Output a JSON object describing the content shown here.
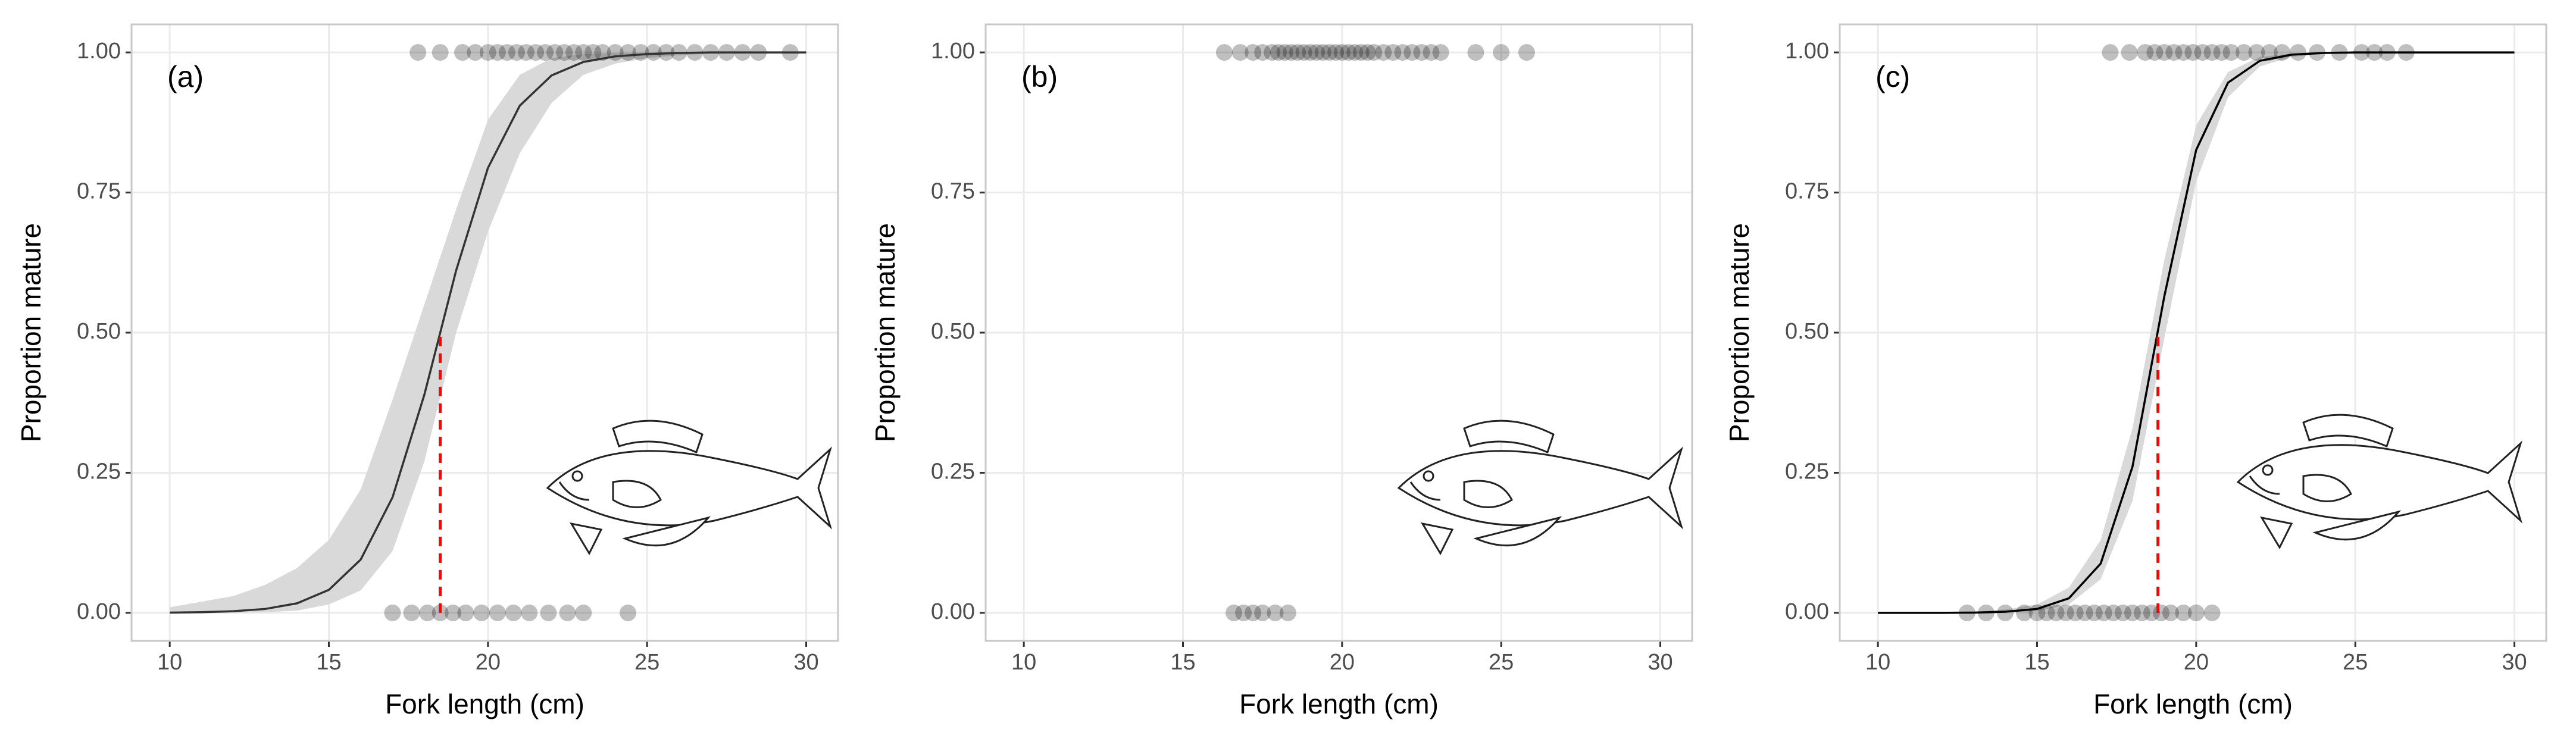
{
  "chart_data": [
    {
      "type": "logistic",
      "panel_label": "(a)",
      "xlabel": "Fork length (cm)",
      "ylabel": "Proportion mature",
      "xlim": [
        8.8,
        31
      ],
      "ylim": [
        -0.05,
        1.05
      ],
      "xticks": [
        10,
        15,
        20,
        25,
        30
      ],
      "yticks": [
        {
          "value": 0,
          "label": "0.00"
        },
        {
          "value": 0.25,
          "label": "0.25"
        },
        {
          "value": 0.5,
          "label": "0.50"
        },
        {
          "value": 0.75,
          "label": "0.75"
        },
        {
          "value": 1,
          "label": "1.00"
        }
      ],
      "grid": true,
      "points": {
        "color": "#000000",
        "x": [
          17.8,
          18.5,
          19.2,
          19.6,
          20.0,
          20.3,
          20.6,
          20.9,
          21.2,
          21.5,
          21.8,
          22.1,
          22.4,
          22.7,
          23.0,
          23.3,
          23.6,
          24.0,
          24.4,
          24.8,
          25.2,
          25.6,
          26.0,
          26.5,
          27.0,
          27.5,
          28.0,
          28.5,
          29.5,
          17.0,
          17.6,
          18.1,
          18.5,
          18.9,
          19.3,
          19.8,
          20.3,
          20.8,
          21.3,
          21.9,
          22.5,
          23.0,
          24.4
        ],
        "values": [
          1,
          1,
          1,
          1,
          1,
          1,
          1,
          1,
          1,
          1,
          1,
          1,
          1,
          1,
          1,
          1,
          1,
          1,
          1,
          1,
          1,
          1,
          1,
          1,
          1,
          1,
          1,
          1,
          1,
          0,
          0,
          0,
          0,
          0,
          0,
          0,
          0,
          0,
          0,
          0,
          0,
          0,
          0
        ]
      },
      "fit": {
        "color": "#333333",
        "band_color": "#d9d9d9",
        "x": [
          10,
          11,
          12,
          13,
          14,
          15,
          16,
          17,
          18,
          19,
          20,
          21,
          22,
          23,
          24,
          25,
          26,
          27,
          28,
          29,
          30
        ],
        "values": [
          0.0005,
          0.0012,
          0.0029,
          0.007,
          0.017,
          0.041,
          0.095,
          0.206,
          0.389,
          0.611,
          0.794,
          0.905,
          0.959,
          0.983,
          0.993,
          0.997,
          0.999,
          1,
          1,
          1,
          1
        ],
        "lower": [
          0,
          0,
          0,
          0.001,
          0.004,
          0.015,
          0.04,
          0.11,
          0.27,
          0.5,
          0.68,
          0.82,
          0.91,
          0.96,
          0.98,
          0.99,
          0.995,
          0.998,
          0.999,
          0.999,
          0.999
        ],
        "upper": [
          0.01,
          0.02,
          0.03,
          0.05,
          0.08,
          0.13,
          0.22,
          0.38,
          0.55,
          0.72,
          0.88,
          0.96,
          0.99,
          0.997,
          0.999,
          1,
          1,
          1,
          1,
          1,
          1
        ]
      },
      "l50": {
        "x": 18.5,
        "y": 0.5,
        "color": "#ff0000"
      }
    },
    {
      "type": "logistic",
      "panel_label": "(b)",
      "xlabel": "Fork length (cm)",
      "ylabel": "Proportion mature",
      "xlim": [
        8.8,
        31
      ],
      "ylim": [
        -0.05,
        1.05
      ],
      "xticks": [
        10,
        15,
        20,
        25,
        30
      ],
      "yticks": [
        {
          "value": 0,
          "label": "0.00"
        },
        {
          "value": 0.25,
          "label": "0.25"
        },
        {
          "value": 0.5,
          "label": "0.50"
        },
        {
          "value": 0.75,
          "label": "0.75"
        },
        {
          "value": 1,
          "label": "1.00"
        }
      ],
      "grid": true,
      "points": {
        "color": "#000000",
        "x": [
          16.3,
          16.8,
          17.2,
          17.5,
          17.8,
          18.0,
          18.2,
          18.4,
          18.6,
          18.8,
          19.0,
          19.2,
          19.4,
          19.6,
          19.8,
          20.0,
          20.2,
          20.4,
          20.6,
          20.8,
          21.0,
          21.3,
          21.6,
          21.9,
          22.2,
          22.5,
          22.8,
          23.1,
          24.2,
          25.0,
          25.8,
          16.6,
          16.9,
          17.2,
          17.5,
          17.9,
          18.3
        ],
        "values": [
          1,
          1,
          1,
          1,
          1,
          1,
          1,
          1,
          1,
          1,
          1,
          1,
          1,
          1,
          1,
          1,
          1,
          1,
          1,
          1,
          1,
          1,
          1,
          1,
          1,
          1,
          1,
          1,
          1,
          1,
          1,
          0,
          0,
          0,
          0,
          0,
          0
        ]
      }
    },
    {
      "type": "logistic",
      "panel_label": "(c)",
      "xlabel": "Fork length (cm)",
      "ylabel": "Proportion mature",
      "xlim": [
        8.8,
        31
      ],
      "ylim": [
        -0.05,
        1.05
      ],
      "xticks": [
        10,
        15,
        20,
        25,
        30
      ],
      "yticks": [
        {
          "value": 0,
          "label": "0.00"
        },
        {
          "value": 0.25,
          "label": "0.25"
        },
        {
          "value": 0.5,
          "label": "0.50"
        },
        {
          "value": 0.75,
          "label": "0.75"
        },
        {
          "value": 1,
          "label": "1.00"
        }
      ],
      "grid": true,
      "points": {
        "color": "#000000",
        "x": [
          17.3,
          17.9,
          18.4,
          18.7,
          19.0,
          19.3,
          19.6,
          19.9,
          20.2,
          20.5,
          20.8,
          21.1,
          21.5,
          21.9,
          22.3,
          22.7,
          23.2,
          23.8,
          24.5,
          25.2,
          25.6,
          26.0,
          26.6,
          12.8,
          13.4,
          14.0,
          14.6,
          15.0,
          15.3,
          15.6,
          15.9,
          16.2,
          16.5,
          16.8,
          17.1,
          17.4,
          17.7,
          18.0,
          18.3,
          18.6,
          18.9,
          19.2,
          19.6,
          20.0,
          20.5
        ],
        "values": [
          1,
          1,
          1,
          1,
          1,
          1,
          1,
          1,
          1,
          1,
          1,
          1,
          1,
          1,
          1,
          1,
          1,
          1,
          1,
          1,
          1,
          1,
          1,
          0,
          0,
          0,
          0,
          0,
          0,
          0,
          0,
          0,
          0,
          0,
          0,
          0,
          0,
          0,
          0,
          0,
          0,
          0,
          0,
          0,
          0
        ]
      },
      "fit": {
        "color": "#000000",
        "band_color": "#d9d9d9",
        "x": [
          10,
          11,
          12,
          13,
          14,
          15,
          16,
          17,
          18,
          19,
          20,
          21,
          22,
          23,
          24,
          25,
          26,
          27,
          28,
          29,
          30
        ],
        "values": [
          0,
          0,
          0.0001,
          0.0005,
          0.002,
          0.007,
          0.026,
          0.088,
          0.261,
          0.565,
          0.826,
          0.946,
          0.985,
          0.996,
          0.999,
          1,
          1,
          1,
          1,
          1,
          1
        ],
        "lower": [
          0,
          0,
          0,
          0,
          0.0005,
          0.003,
          0.015,
          0.06,
          0.2,
          0.49,
          0.77,
          0.92,
          0.975,
          0.992,
          0.998,
          1,
          1,
          1,
          1,
          1,
          1
        ],
        "upper": [
          0,
          0,
          0.0005,
          0.002,
          0.006,
          0.015,
          0.045,
          0.13,
          0.33,
          0.63,
          0.87,
          0.965,
          0.992,
          0.998,
          1,
          1,
          1,
          1,
          1,
          1,
          1
        ]
      },
      "l50": {
        "x": 18.8,
        "y": 0.5,
        "color": "#ff0000"
      }
    }
  ]
}
